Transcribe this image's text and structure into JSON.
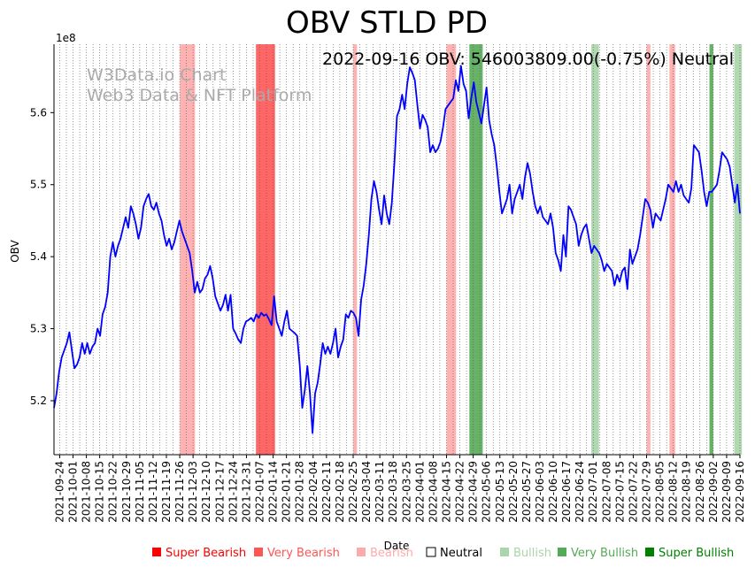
{
  "chart_data": {
    "type": "line",
    "title": "OBV STLD PD",
    "annotation": "2022-09-16 OBV: 546003809.00(-0.75%) Neutral",
    "watermark": [
      "W3Data.io Chart",
      "Web3 Data & NFT Platform"
    ],
    "xlabel": "Date",
    "ylabel": "OBV",
    "y_offset_label": "1e8",
    "ylim": [
      5.125,
      5.695
    ],
    "yticks": [
      5.2,
      5.3,
      5.4,
      5.5,
      5.6
    ],
    "ytick_labels": [
      "5.2",
      "5.3",
      "5.4",
      "5.5",
      "5.6"
    ],
    "x_start": "2021-09-21",
    "x_end": "2022-09-16",
    "xtick_labels": [
      "2021-09-24",
      "2021-10-01",
      "2021-10-08",
      "2021-10-15",
      "2021-10-22",
      "2021-10-29",
      "2021-11-05",
      "2021-11-12",
      "2021-11-19",
      "2021-11-26",
      "2021-12-03",
      "2021-12-10",
      "2021-12-17",
      "2021-12-24",
      "2021-12-31",
      "2022-01-07",
      "2022-01-14",
      "2022-01-21",
      "2022-01-28",
      "2022-02-04",
      "2022-02-11",
      "2022-02-18",
      "2022-02-25",
      "2022-03-04",
      "2022-03-11",
      "2022-03-18",
      "2022-03-25",
      "2022-04-01",
      "2022-04-08",
      "2022-04-15",
      "2022-04-22",
      "2022-04-29",
      "2022-05-06",
      "2022-05-13",
      "2022-05-20",
      "2022-05-27",
      "2022-06-03",
      "2022-06-10",
      "2022-06-17",
      "2022-06-24",
      "2022-07-01",
      "2022-07-08",
      "2022-07-15",
      "2022-07-22",
      "2022-07-29",
      "2022-08-05",
      "2022-08-12",
      "2022-08-19",
      "2022-08-26",
      "2022-09-02",
      "2022-09-09",
      "2022-09-16"
    ],
    "series": [
      {
        "name": "OBV",
        "color": "#0000ff",
        "values": [
          5.19,
          5.21,
          5.24,
          5.26,
          5.27,
          5.28,
          5.295,
          5.27,
          5.245,
          5.25,
          5.26,
          5.28,
          5.265,
          5.28,
          5.265,
          5.275,
          5.28,
          5.3,
          5.29,
          5.32,
          5.33,
          5.35,
          5.4,
          5.42,
          5.4,
          5.415,
          5.425,
          5.44,
          5.455,
          5.44,
          5.47,
          5.46,
          5.445,
          5.425,
          5.44,
          5.47,
          5.48,
          5.487,
          5.47,
          5.465,
          5.475,
          5.46,
          5.45,
          5.43,
          5.415,
          5.425,
          5.41,
          5.42,
          5.435,
          5.45,
          5.435,
          5.425,
          5.415,
          5.405,
          5.38,
          5.35,
          5.365,
          5.35,
          5.355,
          5.37,
          5.375,
          5.387,
          5.37,
          5.345,
          5.335,
          5.325,
          5.333,
          5.347,
          5.325,
          5.347,
          5.3,
          5.293,
          5.285,
          5.28,
          5.3,
          5.31,
          5.312,
          5.315,
          5.31,
          5.32,
          5.315,
          5.322,
          5.318,
          5.32,
          5.313,
          5.305,
          5.345,
          5.31,
          5.3,
          5.29,
          5.31,
          5.325,
          5.3,
          5.297,
          5.294,
          5.29,
          5.25,
          5.19,
          5.215,
          5.248,
          5.21,
          5.155,
          5.21,
          5.225,
          5.25,
          5.28,
          5.265,
          5.275,
          5.265,
          5.28,
          5.3,
          5.26,
          5.275,
          5.285,
          5.32,
          5.315,
          5.325,
          5.322,
          5.315,
          5.29,
          5.34,
          5.36,
          5.39,
          5.43,
          5.48,
          5.505,
          5.49,
          5.465,
          5.445,
          5.485,
          5.46,
          5.445,
          5.475,
          5.53,
          5.595,
          5.605,
          5.625,
          5.605,
          5.64,
          5.663,
          5.655,
          5.645,
          5.61,
          5.578,
          5.597,
          5.59,
          5.58,
          5.545,
          5.555,
          5.545,
          5.55,
          5.56,
          5.58,
          5.605,
          5.61,
          5.615,
          5.62,
          5.645,
          5.63,
          5.665,
          5.64,
          5.63,
          5.592,
          5.62,
          5.642,
          5.615,
          5.6,
          5.585,
          5.61,
          5.635,
          5.59,
          5.57,
          5.555,
          5.525,
          5.49,
          5.46,
          5.47,
          5.48,
          5.5,
          5.46,
          5.48,
          5.49,
          5.5,
          5.48,
          5.51,
          5.53,
          5.515,
          5.49,
          5.47,
          5.46,
          5.47,
          5.455,
          5.45,
          5.445,
          5.46,
          5.44,
          5.405,
          5.395,
          5.38,
          5.43,
          5.4,
          5.47,
          5.465,
          5.455,
          5.445,
          5.415,
          5.43,
          5.44,
          5.445,
          5.425,
          5.405,
          5.415,
          5.41,
          5.405,
          5.395,
          5.38,
          5.39,
          5.385,
          5.38,
          5.36,
          5.375,
          5.365,
          5.38,
          5.385,
          5.355,
          5.41,
          5.39,
          5.4,
          5.41,
          5.43,
          5.455,
          5.48,
          5.475,
          5.465,
          5.44,
          5.46,
          5.455,
          5.45,
          5.465,
          5.48,
          5.5,
          5.495,
          5.49,
          5.505,
          5.49,
          5.5,
          5.485,
          5.48,
          5.475,
          5.495,
          5.555,
          5.55,
          5.545,
          5.52,
          5.49,
          5.47,
          5.49,
          5.49,
          5.495,
          5.5,
          5.52,
          5.545,
          5.54,
          5.535,
          5.525,
          5.5,
          5.475,
          5.5,
          5.46
        ]
      }
    ],
    "signal_bands": [
      {
        "start": "2021-11-26",
        "end": "2021-12-03",
        "signal": "Bearish"
      },
      {
        "start": "2022-01-05",
        "end": "2022-01-14",
        "signal": "Very Bearish"
      },
      {
        "start": "2022-02-25",
        "end": "2022-02-26",
        "signal": "Bearish"
      },
      {
        "start": "2022-04-15",
        "end": "2022-04-19",
        "signal": "Bearish"
      },
      {
        "start": "2022-04-27",
        "end": "2022-05-03",
        "signal": "Very Bullish"
      },
      {
        "start": "2022-06-30",
        "end": "2022-07-03",
        "signal": "Bullish"
      },
      {
        "start": "2022-07-29",
        "end": "2022-07-30",
        "signal": "Bearish"
      },
      {
        "start": "2022-08-10",
        "end": "2022-08-12",
        "signal": "Bearish"
      },
      {
        "start": "2022-08-31",
        "end": "2022-09-01",
        "signal": "Very Bullish"
      },
      {
        "start": "2022-09-13",
        "end": "2022-09-16",
        "signal": "Bullish"
      }
    ],
    "legend": [
      {
        "label": "Super Bearish",
        "color": "#ff0000"
      },
      {
        "label": "Very Bearish",
        "color": "#ff5555"
      },
      {
        "label": "Bearish",
        "color": "#ffaaaa"
      },
      {
        "label": "Neutral",
        "color": "#000000",
        "hollow": true
      },
      {
        "label": "Bullish",
        "color": "#aad4aa"
      },
      {
        "label": "Very Bullish",
        "color": "#55aa55"
      },
      {
        "label": "Super Bullish",
        "color": "#008000"
      }
    ],
    "legend_position": "bottom"
  }
}
